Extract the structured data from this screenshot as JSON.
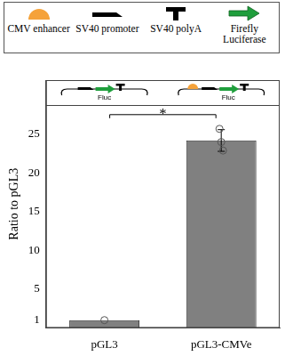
{
  "chart_data": {
    "type": "bar",
    "categories": [
      "pGL3",
      "pGL3-CMVe"
    ],
    "values": [
      1,
      24.2
    ],
    "error": [
      0,
      1.4
    ],
    "points": [
      [
        1
      ],
      [
        25.7,
        24.0,
        22.9
      ]
    ],
    "color": "#808080",
    "y_label": "Ratio to pGL3",
    "ylim": [
      0,
      32
    ],
    "yticks": [
      1,
      5,
      10,
      15,
      20,
      25
    ],
    "annotations": [
      {
        "text": "*"
      }
    ],
    "grid": false
  },
  "key": [
    "CMV enhancer",
    "SV40 promoter",
    "SV40 polyA",
    "Firefly Luciferase"
  ],
  "schematics": [
    "Fluc",
    "Fluc"
  ]
}
